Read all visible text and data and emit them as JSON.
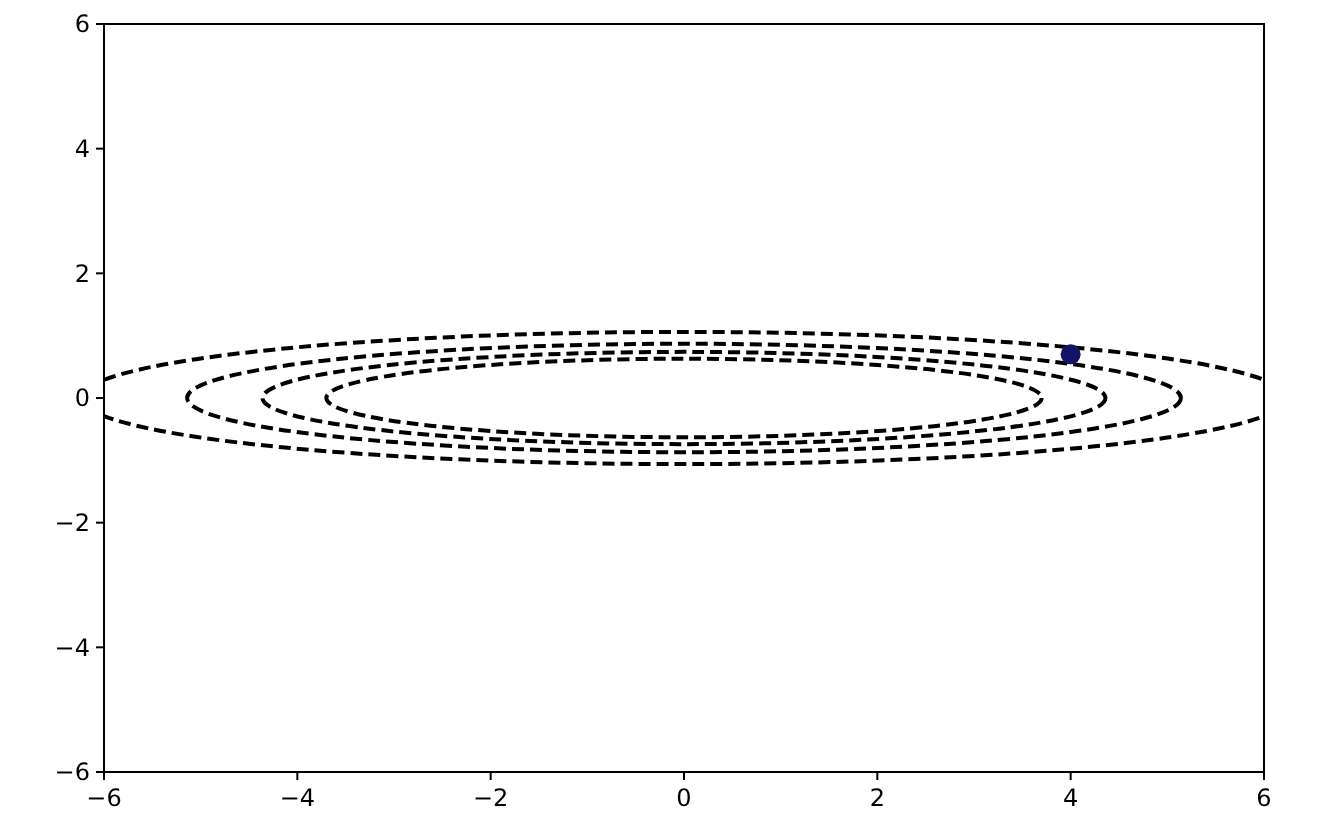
{
  "chart_data": {
    "type": "scatter",
    "xlim": [
      -6,
      6
    ],
    "ylim": [
      -6,
      6
    ],
    "xticks": [
      {
        "value": -6,
        "label": "−6"
      },
      {
        "value": -4,
        "label": "−4"
      },
      {
        "value": -2,
        "label": "−2"
      },
      0,
      2,
      4,
      6
    ],
    "yticks": [
      {
        "value": -6,
        "label": "−6"
      },
      {
        "value": -4,
        "label": "−4"
      },
      {
        "value": -2,
        "label": "−2"
      },
      0,
      2,
      4,
      6
    ],
    "grid": false,
    "marker": "circle",
    "series": [
      {
        "color": "#141466",
        "x": [
          4.0
        ],
        "values": [
          0.7
        ]
      }
    ]
  }
}
